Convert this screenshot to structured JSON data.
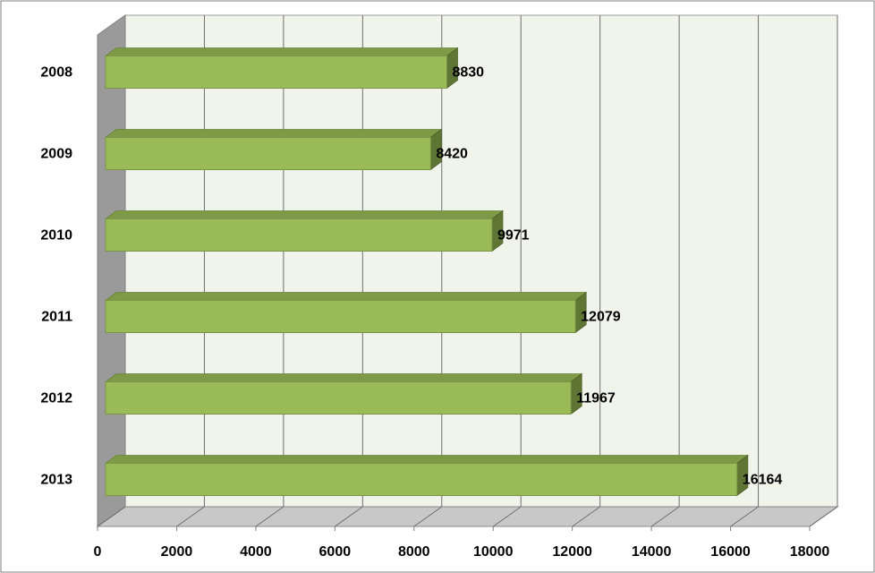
{
  "chart_data": {
    "type": "bar",
    "orientation": "horizontal",
    "style": "3d",
    "title": "",
    "xlabel": "",
    "ylabel": "",
    "categories": [
      "2008",
      "2009",
      "2010",
      "2011",
      "2012",
      "2013"
    ],
    "values": [
      8830,
      8420,
      9971,
      12079,
      11967,
      16164
    ],
    "xlim": [
      0,
      18000
    ],
    "xticks": [
      "0",
      "2000",
      "4000",
      "6000",
      "8000",
      "10000",
      "12000",
      "14000",
      "16000",
      "18000"
    ],
    "grid": true,
    "legend": "none",
    "colors": {
      "bar_front": "#9bbb59",
      "bar_top": "#7e9a46",
      "bar_side": "#5f7534",
      "back_wall": "#f0f4ea",
      "side_wall": "#9a9a9a",
      "floor": "#c8c8c8",
      "gridline": "#6e6e6e"
    }
  }
}
